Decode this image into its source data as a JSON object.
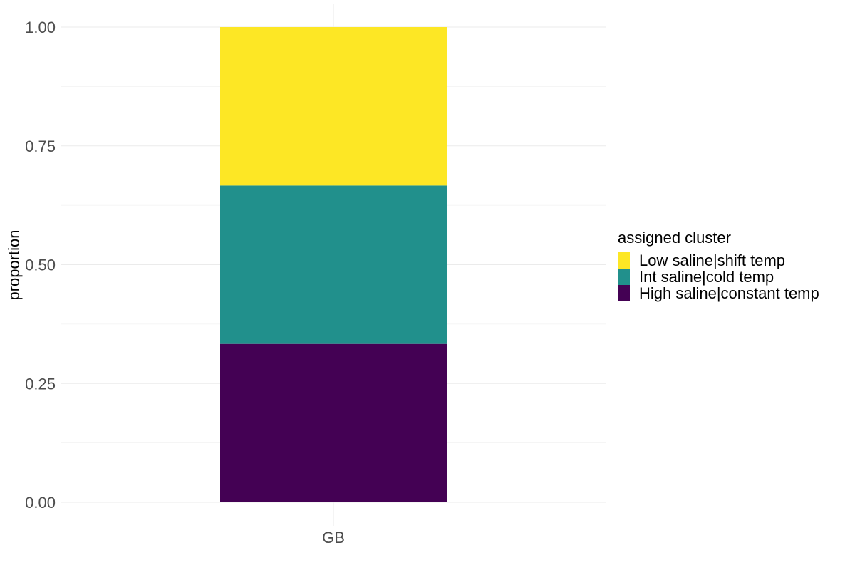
{
  "chart_data": {
    "type": "bar",
    "stacked": true,
    "categories": [
      "GB"
    ],
    "series": [
      {
        "name": "High saline|constant temp",
        "values": [
          0.3333
        ],
        "color": "#440154"
      },
      {
        "name": "Int saline|cold temp",
        "values": [
          0.3333
        ],
        "color": "#21908C"
      },
      {
        "name": "Low saline|shift temp",
        "values": [
          0.3334
        ],
        "color": "#FDE725"
      }
    ],
    "title": "",
    "xlabel": "",
    "ylabel": "proportion",
    "ylim": [
      0,
      1
    ],
    "yticks": [
      "0.00",
      "0.25",
      "0.50",
      "0.75",
      "1.00"
    ],
    "ytick_values": [
      0,
      0.25,
      0.5,
      0.75,
      1
    ],
    "grid": true,
    "legend": {
      "title": "assigned cluster",
      "placement": "right",
      "order": [
        "Low saline|shift temp",
        "Int saline|cold temp",
        "High saline|constant temp"
      ]
    }
  }
}
